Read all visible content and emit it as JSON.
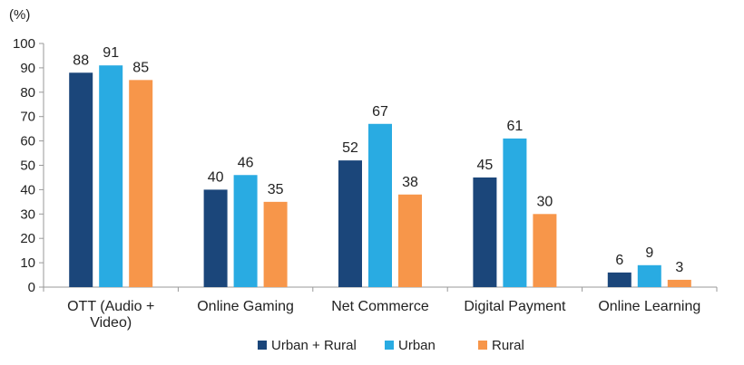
{
  "chart_data": {
    "type": "bar",
    "ylabel": "(%)",
    "ylim": [
      0,
      100
    ],
    "yticks": [
      0,
      10,
      20,
      30,
      40,
      50,
      60,
      70,
      80,
      90,
      100
    ],
    "categories": [
      [
        "OTT (Audio +",
        "Video)"
      ],
      [
        "Online Gaming"
      ],
      [
        "Net Commerce"
      ],
      [
        "Digital Payment"
      ],
      [
        "Online Learning"
      ]
    ],
    "series": [
      {
        "name": "Urban + Rural",
        "color": "#1b467a",
        "values": [
          88,
          40,
          52,
          45,
          6
        ]
      },
      {
        "name": "Urban",
        "color": "#29abe2",
        "values": [
          91,
          46,
          67,
          61,
          9
        ]
      },
      {
        "name": "Rural",
        "color": "#f7964a",
        "values": [
          85,
          35,
          38,
          30,
          3
        ]
      }
    ],
    "legend_position": "bottom",
    "grid": false
  }
}
